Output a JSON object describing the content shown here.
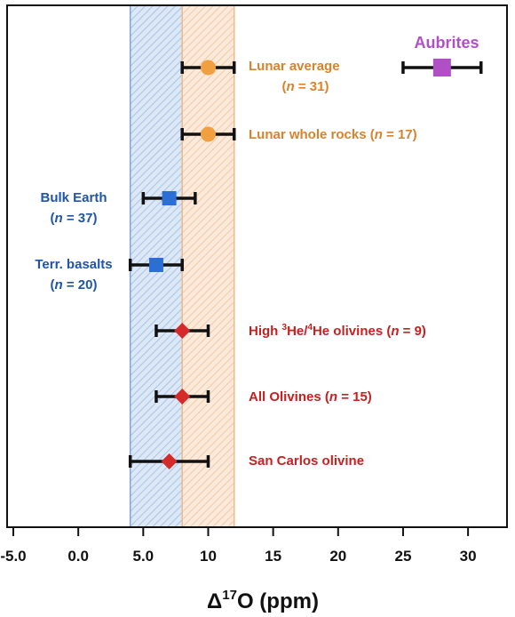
{
  "chart_data": {
    "type": "scatter",
    "xlabel": "Δ17O (ppm)",
    "xlabel_parts": {
      "base": "Δ",
      "sup": "17",
      "rest": "O (ppm)"
    },
    "xlim": [
      -5,
      33
    ],
    "xticks": [
      "-5.0",
      "0.0",
      "5.0",
      "10",
      "15",
      "20",
      "25",
      "30"
    ],
    "xtick_values": [
      -5,
      0,
      5,
      10,
      15,
      20,
      25,
      30
    ],
    "grid": false,
    "bands": [
      {
        "name": "blue-band",
        "x": [
          4,
          8
        ],
        "color": "#9ab8e0"
      },
      {
        "name": "orange-band",
        "x": [
          8,
          12
        ],
        "color": "#f4c69a"
      }
    ],
    "points": [
      {
        "id": "aubrites",
        "x": 28,
        "err": [
          25,
          31
        ],
        "marker": "square",
        "color": "#b04fc6",
        "label": "Aubrites",
        "sub": ""
      },
      {
        "id": "lunar-average",
        "x": 10,
        "err": [
          8,
          12
        ],
        "marker": "circle",
        "color": "#f0a040",
        "label": "Lunar average",
        "sub": "(n = 31)"
      },
      {
        "id": "lunar-whole-rocks",
        "x": 10,
        "err": [
          8,
          12
        ],
        "marker": "circle",
        "color": "#f0a040",
        "label": "Lunar whole rocks (n = 17)",
        "sub": ""
      },
      {
        "id": "bulk-earth",
        "x": 7,
        "err": [
          5,
          9
        ],
        "marker": "square",
        "color": "#2b6fd6",
        "label": "Bulk Earth",
        "sub": "(n = 37)"
      },
      {
        "id": "terr-basalts",
        "x": 6,
        "err": [
          4,
          8
        ],
        "marker": "square",
        "color": "#2b6fd6",
        "label": "Terr. basalts",
        "sub": "(n = 20)"
      },
      {
        "id": "high-he-olivines",
        "x": 8,
        "err": [
          6,
          10
        ],
        "marker": "diamond",
        "color": "#d42a2a",
        "label": "High 3He/4He olivines (n = 9)",
        "sub": ""
      },
      {
        "id": "all-olivines",
        "x": 8,
        "err": [
          6,
          10
        ],
        "marker": "diamond",
        "color": "#d42a2a",
        "label": "All Olivines (n = 15)",
        "sub": ""
      },
      {
        "id": "san-carlos-olivine",
        "x": 7,
        "err": [
          4,
          10
        ],
        "marker": "diamond",
        "color": "#d42a2a",
        "label": "San Carlos olivine",
        "sub": ""
      }
    ],
    "label_colors": {
      "orange": "#d8832c",
      "blue": "#1f55a8",
      "red": "#c82020",
      "purple": "#b04fc6"
    }
  }
}
